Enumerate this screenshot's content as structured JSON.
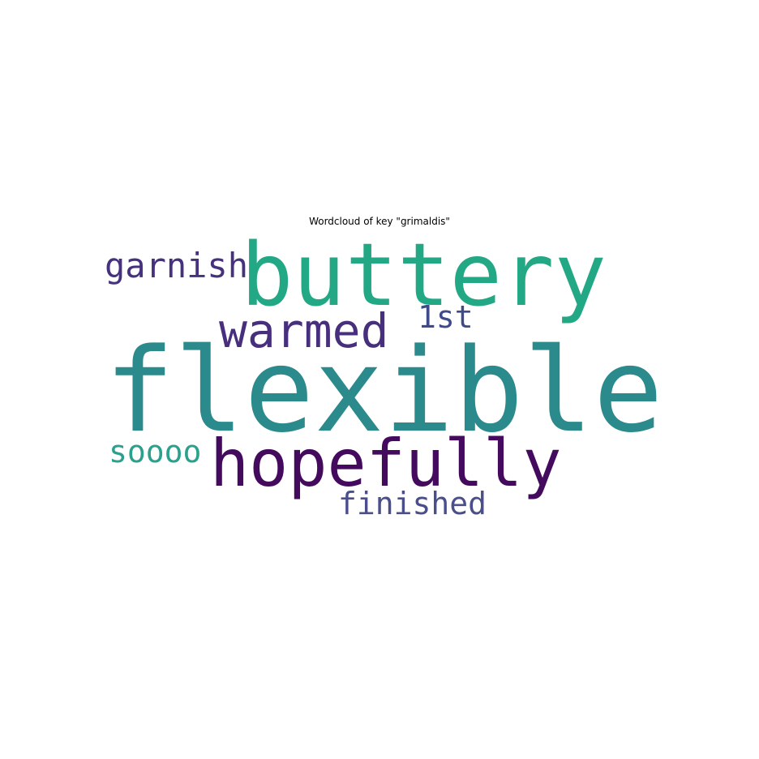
{
  "title": "Wordcloud of key \"grimaldis\"",
  "words": [
    {
      "id": "flexible",
      "text": "flexible",
      "color": "#2a8a8c"
    },
    {
      "id": "buttery",
      "text": "buttery",
      "color": "#22a884"
    },
    {
      "id": "hopefully",
      "text": "hopefully",
      "color": "#440a5e"
    },
    {
      "id": "warmed",
      "text": "warmed",
      "color": "#472f7d"
    },
    {
      "id": "garnish",
      "text": "garnish",
      "color": "#46317e"
    },
    {
      "id": "1st",
      "text": "1st",
      "color": "#3e4a89"
    },
    {
      "id": "soooo",
      "text": "soooo",
      "color": "#2ba08d"
    },
    {
      "id": "finished",
      "text": "finished",
      "color": "#4a4f8b"
    }
  ]
}
